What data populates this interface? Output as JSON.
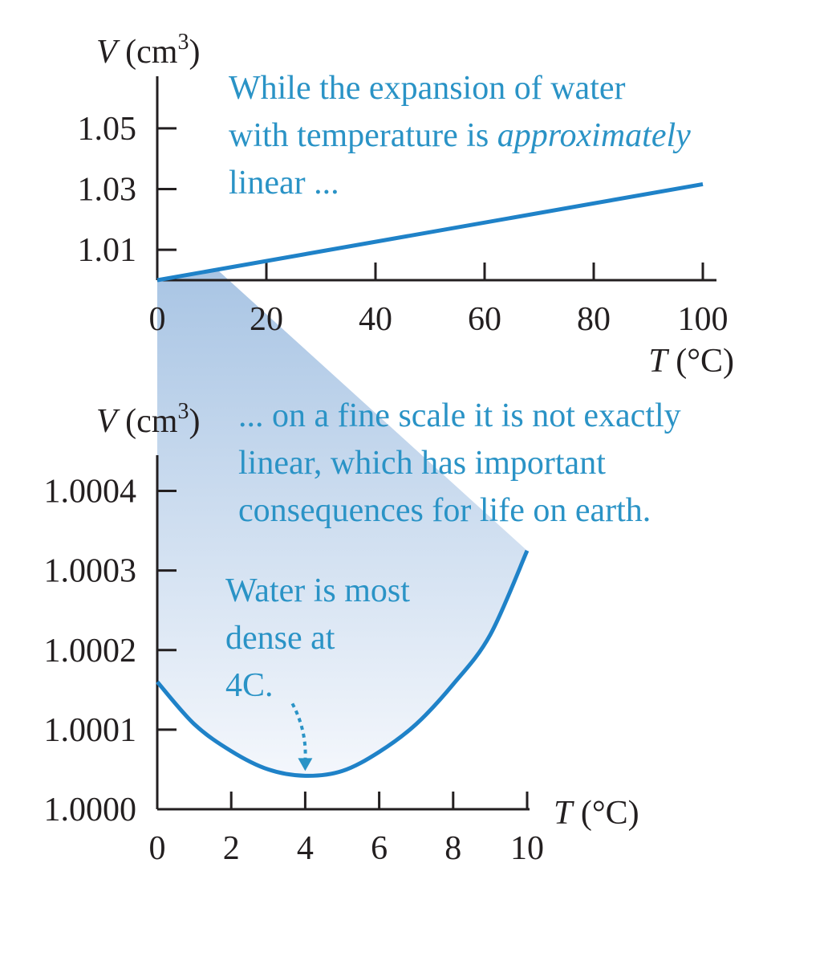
{
  "colors": {
    "curve": "#1f82c8",
    "annotation_text": "#2a93c6",
    "axis": "#231f20",
    "highlight_top": "#a9c5e4",
    "highlight_bottom": "#f4f7fc"
  },
  "chart_data": [
    {
      "type": "line",
      "ylabel_var": "V",
      "ylabel_unit": "(cm",
      "ylabel_sup": "3",
      "ylabel_close": ")",
      "xlabel_var": "T",
      "xlabel_unit": "(°C)",
      "xlim": [
        0,
        100
      ],
      "ylim": [
        1.0,
        1.06
      ],
      "x_ticks": [
        0,
        20,
        40,
        60,
        80,
        100
      ],
      "x_tick_labels": [
        "0",
        "20",
        "40",
        "60",
        "80",
        "100"
      ],
      "y_ticks": [
        1.01,
        1.03,
        1.05
      ],
      "y_tick_labels": [
        "1.01",
        "1.03",
        "1.05"
      ],
      "grid": false,
      "series": [
        {
          "x": [
            0,
            100
          ],
          "y": [
            1.0,
            1.0316
          ]
        }
      ],
      "annotation": {
        "line1": "While the expansion of water",
        "line2_plain": "with temperature is ",
        "line2_italic": "approximately",
        "line3": "linear ..."
      }
    },
    {
      "type": "line",
      "ylabel_var": "V",
      "ylabel_unit": "(cm",
      "ylabel_sup": "3",
      "ylabel_close": ")",
      "xlabel_var": "T",
      "xlabel_unit": "(°C)",
      "xlim": [
        0,
        10
      ],
      "ylim": [
        1.0,
        1.00045
      ],
      "x_ticks": [
        0,
        2,
        4,
        6,
        8,
        10
      ],
      "x_tick_labels": [
        "0",
        "2",
        "4",
        "6",
        "8",
        "10"
      ],
      "y_ticks": [
        1.0,
        1.0001,
        1.0002,
        1.0003,
        1.0004
      ],
      "y_tick_labels": [
        "1.0000",
        "1.0001",
        "1.0002",
        "1.0003",
        "1.0004"
      ],
      "grid": false,
      "series": [
        {
          "x": [
            0,
            1,
            2,
            3,
            4,
            5,
            6,
            7,
            8,
            9,
            10
          ],
          "y": [
            1.00016,
            1.000107,
            1.000073,
            1.00005,
            1.000042,
            1.000048,
            1.000072,
            1.000107,
            1.000157,
            1.000219,
            1.000325
          ]
        }
      ],
      "annotations": [
        {
          "lines": [
            "... on a fine scale it is not exactly",
            "linear, which has important",
            "consequences for life on earth."
          ]
        },
        {
          "lines": [
            "Water is most",
            "dense at",
            "4C."
          ],
          "arrow_target": [
            4,
            1.000042
          ]
        }
      ]
    }
  ]
}
